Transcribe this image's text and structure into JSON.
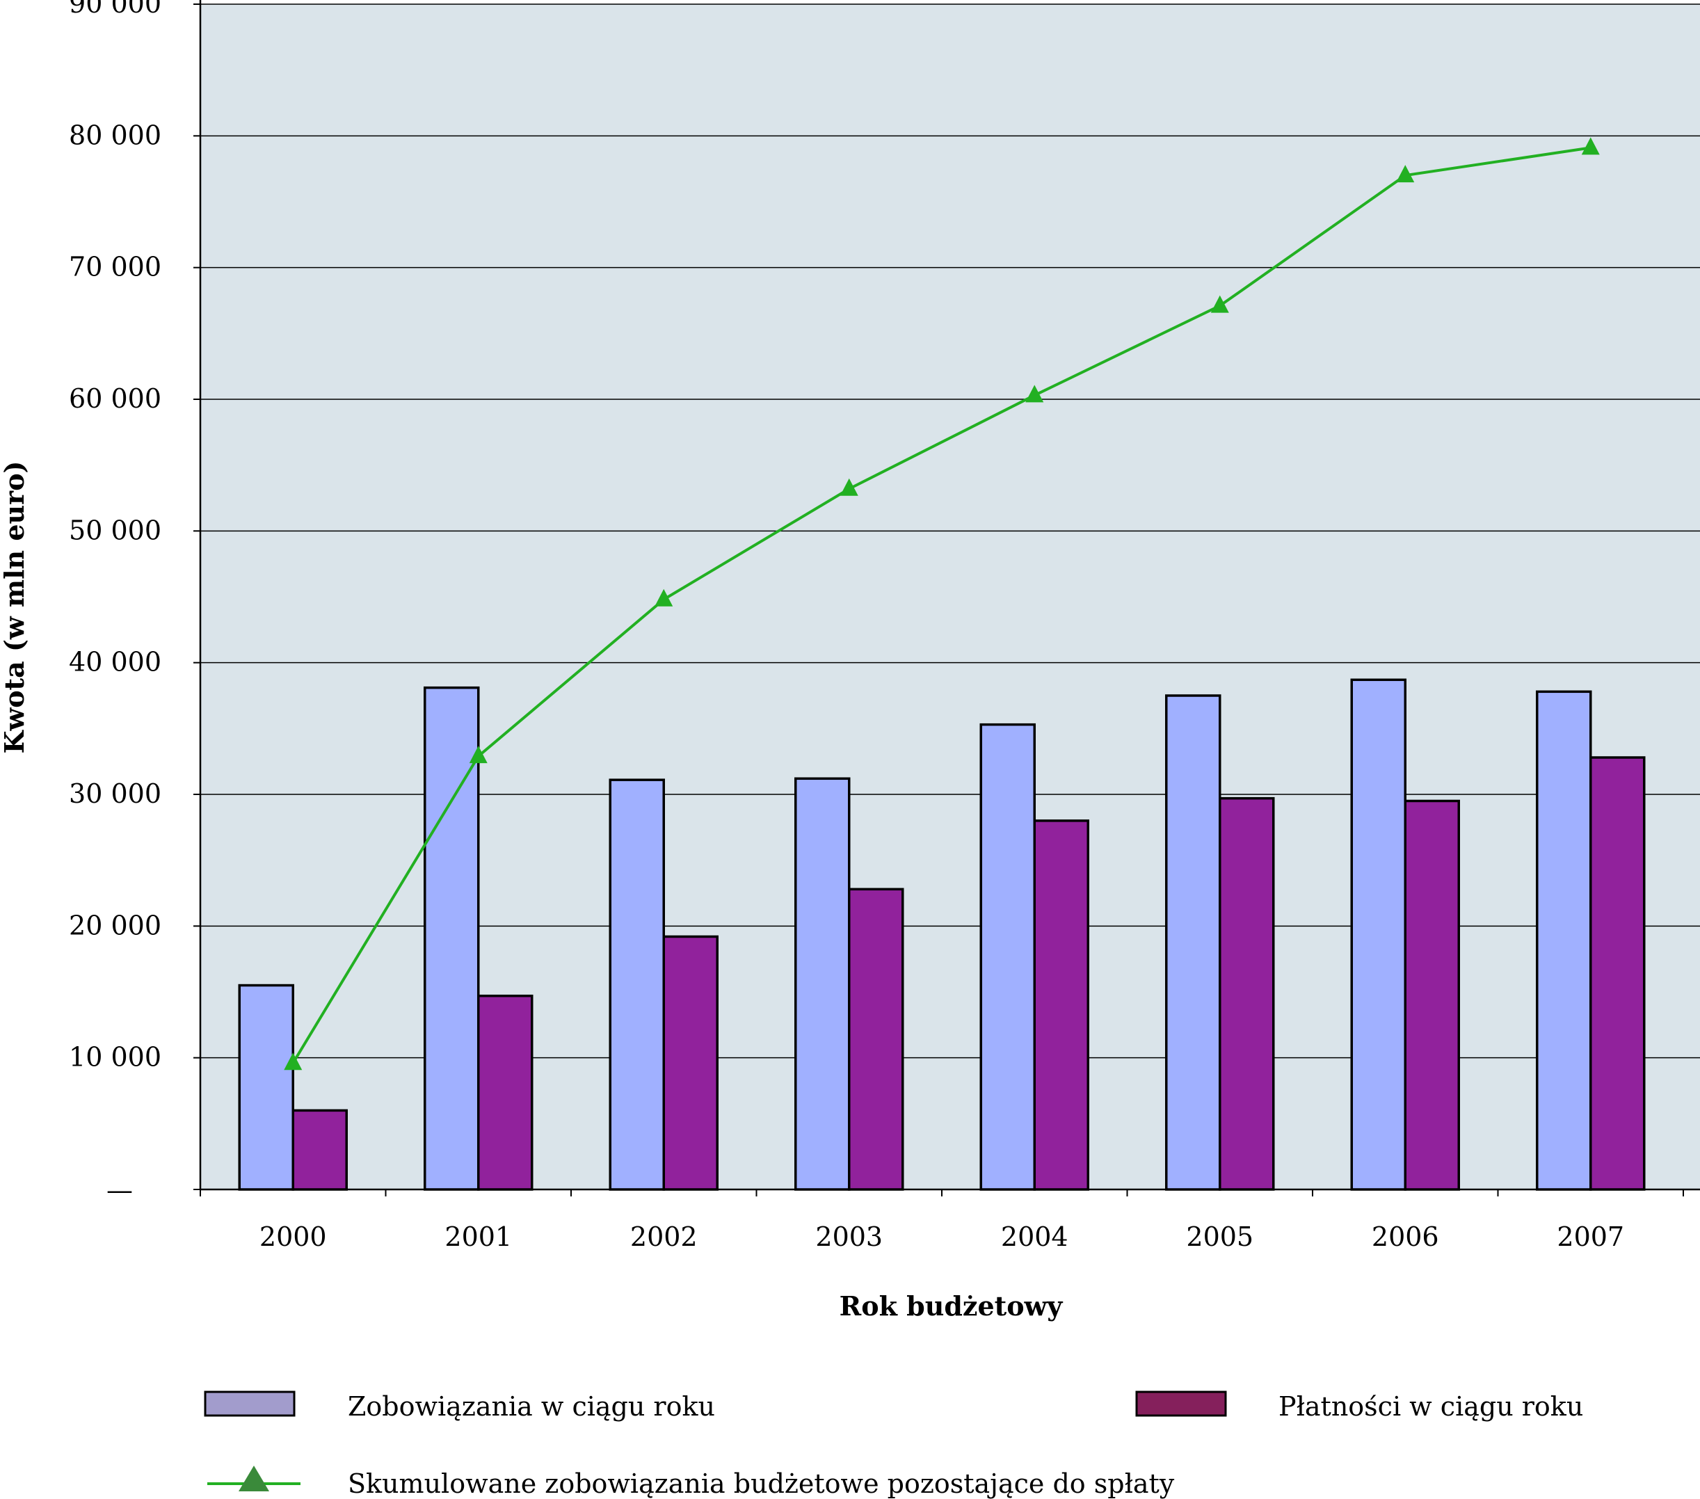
{
  "chart_data": {
    "type": "bar",
    "categories": [
      "2000",
      "2001",
      "2002",
      "2003",
      "2004",
      "2005",
      "2006",
      "2007"
    ],
    "series": [
      {
        "name": "Zobowiązania w ciągu roku",
        "kind": "bar",
        "color": "#a0b0ff",
        "values": [
          15500,
          38100,
          31100,
          31200,
          35300,
          37500,
          38700,
          37800
        ]
      },
      {
        "name": "Płatności w ciągu roku",
        "kind": "bar",
        "color": "#91229c",
        "values": [
          6000,
          14700,
          19200,
          22800,
          28000,
          29700,
          29500,
          32800
        ]
      },
      {
        "name": "Skumulowane zobowiązania budżetowe pozostające do spłaty",
        "kind": "line",
        "color": "#22b022",
        "values": [
          9600,
          32900,
          44800,
          53200,
          60300,
          67100,
          77000,
          79100
        ]
      }
    ],
    "xlabel": "Rok budżetowy",
    "ylabel": "Kwota (w mln euro)",
    "ylim": [
      0,
      90000
    ],
    "yticks": [
      {
        "value": 0,
        "label": "—"
      },
      {
        "value": 10000,
        "label": "10 000"
      },
      {
        "value": 20000,
        "label": "20 000"
      },
      {
        "value": 30000,
        "label": "30 000"
      },
      {
        "value": 40000,
        "label": "40 000"
      },
      {
        "value": 50000,
        "label": "50 000"
      },
      {
        "value": 60000,
        "label": "60 000"
      },
      {
        "value": 70000,
        "label": "70 000"
      },
      {
        "value": 80000,
        "label": "80 000"
      },
      {
        "value": 90000,
        "label": "90 000"
      }
    ],
    "grid": true,
    "plot_background": "#dae4ea",
    "legend": {
      "placement": "bottom",
      "entries": [
        {
          "label": "Zobowiązania w ciągu roku",
          "swatch": "#a29ccc"
        },
        {
          "label": "Płatności w ciągu roku",
          "swatch": "#85205c"
        },
        {
          "label": "Skumulowane zobowiązania budżetowe pozostające do spłaty",
          "swatch": "#3a8a3a"
        }
      ]
    }
  }
}
